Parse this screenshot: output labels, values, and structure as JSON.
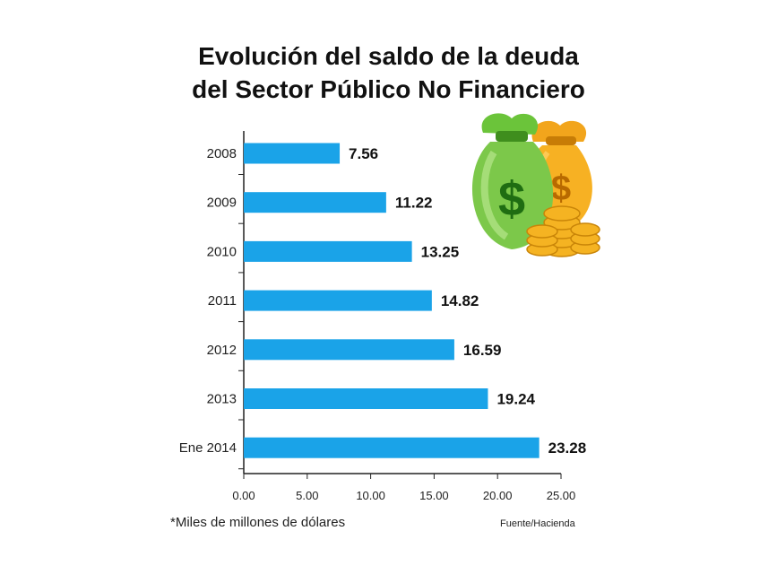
{
  "title_line1": "Evolución del saldo de la deuda",
  "title_line2": "del Sector Público No Financiero",
  "footnote": "*Miles de millones de dólares",
  "source": "Fuente/Hacienda",
  "bar_color": "#1aa3e8",
  "chart_data": {
    "type": "bar",
    "orientation": "horizontal",
    "categories": [
      "2008",
      "2009",
      "2010",
      "2011",
      "2012",
      "2013",
      "Ene 2014"
    ],
    "values": [
      7.56,
      11.22,
      13.25,
      14.82,
      16.59,
      19.24,
      23.28
    ],
    "value_labels": [
      "7.56",
      "11.22",
      "13.25",
      "14.82",
      "16.59",
      "19.24",
      "23.28"
    ],
    "xlim": [
      0,
      25
    ],
    "xticks": [
      "0.00",
      "5.00",
      "10.00",
      "15.00",
      "20.00",
      "25.00"
    ],
    "grid": false,
    "legend": "none"
  },
  "decoration": {
    "icon": "money-bags-icon",
    "symbol": "$"
  }
}
